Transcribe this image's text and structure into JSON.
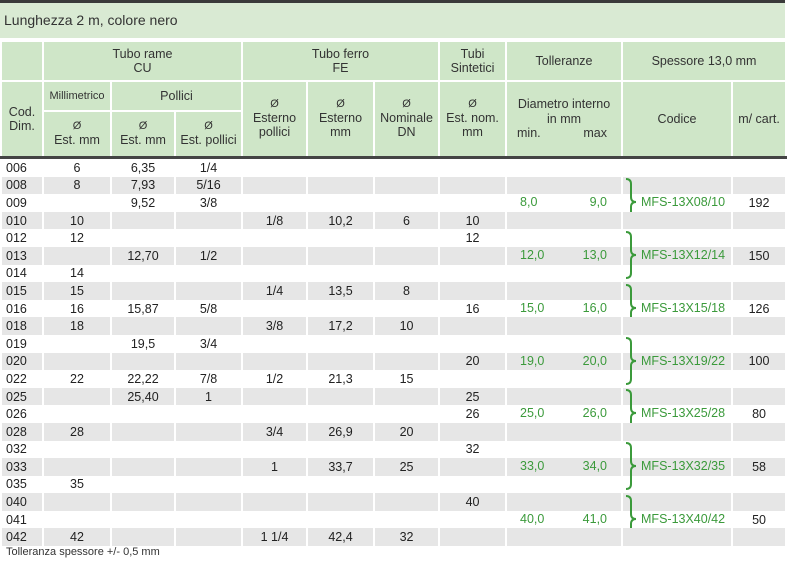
{
  "title": "Lunghezza 2 m, colore nero",
  "header": {
    "cod_dim": "Cod. Dim.",
    "tubo_rame": "Tubo rame",
    "tubo_rame_sub": "CU",
    "millimetrico": "Millimetrico",
    "pollici": "Pollici",
    "est_mm": "Est. mm",
    "est_pollici": "Est. pollici",
    "tubo_ferro": "Tubo ferro",
    "tubo_ferro_sub": "FE",
    "esterno_pollici": "Esterno pollici",
    "esterno_mm": "Esterno mm",
    "nominale_dn": "Nominale DN",
    "tubi_sintetici": "Tubi Sintetici",
    "est_nom_mm": "Est. nom. mm",
    "tolleranze": "Tolleranze",
    "diametro_interno": "Diametro interno in mm",
    "min": "min.",
    "max": "max",
    "spessore": "Spessore 13,0 mm",
    "codice": "Codice",
    "m_cart": "m/ cart.",
    "diameter_symbol": "Ø"
  },
  "rows": [
    {
      "cod": "006",
      "cu_mm": "6",
      "cu_mm2": "6,35",
      "cu_in": "1/4",
      "fe_in": "",
      "fe_mm": "",
      "fe_dn": "",
      "sint": "",
      "tol_min": "",
      "tol_max": "",
      "code": "",
      "mcart": ""
    },
    {
      "cod": "008",
      "cu_mm": "8",
      "cu_mm2": "7,93",
      "cu_in": "5/16",
      "fe_in": "",
      "fe_mm": "",
      "fe_dn": "",
      "sint": "",
      "tol_min": "",
      "tol_max": "",
      "code": "",
      "mcart": ""
    },
    {
      "cod": "009",
      "cu_mm": "",
      "cu_mm2": "9,52",
      "cu_in": "3/8",
      "fe_in": "",
      "fe_mm": "",
      "fe_dn": "",
      "sint": "",
      "tol_min": "8,0",
      "tol_max": "9,0",
      "code": "MFS-13X08/10",
      "mcart": "192"
    },
    {
      "cod": "010",
      "cu_mm": "10",
      "cu_mm2": "",
      "cu_in": "",
      "fe_in": "1/8",
      "fe_mm": "10,2",
      "fe_dn": "6",
      "sint": "10",
      "tol_min": "",
      "tol_max": "",
      "code": "",
      "mcart": ""
    },
    {
      "cod": "012",
      "cu_mm": "12",
      "cu_mm2": "",
      "cu_in": "",
      "fe_in": "",
      "fe_mm": "",
      "fe_dn": "",
      "sint": "12",
      "tol_min": "",
      "tol_max": "",
      "code": "",
      "mcart": ""
    },
    {
      "cod": "013",
      "cu_mm": "",
      "cu_mm2": "12,70",
      "cu_in": "1/2",
      "fe_in": "",
      "fe_mm": "",
      "fe_dn": "",
      "sint": "",
      "tol_min": "12,0",
      "tol_max": "13,0",
      "code": "MFS-13X12/14",
      "mcart": "150"
    },
    {
      "cod": "014",
      "cu_mm": "14",
      "cu_mm2": "",
      "cu_in": "",
      "fe_in": "",
      "fe_mm": "",
      "fe_dn": "",
      "sint": "",
      "tol_min": "",
      "tol_max": "",
      "code": "",
      "mcart": ""
    },
    {
      "cod": "015",
      "cu_mm": "15",
      "cu_mm2": "",
      "cu_in": "",
      "fe_in": "1/4",
      "fe_mm": "13,5",
      "fe_dn": "8",
      "sint": "",
      "tol_min": "",
      "tol_max": "",
      "code": "",
      "mcart": ""
    },
    {
      "cod": "016",
      "cu_mm": "16",
      "cu_mm2": "15,87",
      "cu_in": "5/8",
      "fe_in": "",
      "fe_mm": "",
      "fe_dn": "",
      "sint": "16",
      "tol_min": "15,0",
      "tol_max": "16,0",
      "code": "MFS-13X15/18",
      "mcart": "126"
    },
    {
      "cod": "018",
      "cu_mm": "18",
      "cu_mm2": "",
      "cu_in": "",
      "fe_in": "3/8",
      "fe_mm": "17,2",
      "fe_dn": "10",
      "sint": "",
      "tol_min": "",
      "tol_max": "",
      "code": "",
      "mcart": ""
    },
    {
      "cod": "019",
      "cu_mm": "",
      "cu_mm2": "19,5",
      "cu_in": "3/4",
      "fe_in": "",
      "fe_mm": "",
      "fe_dn": "",
      "sint": "",
      "tol_min": "",
      "tol_max": "",
      "code": "",
      "mcart": ""
    },
    {
      "cod": "020",
      "cu_mm": "",
      "cu_mm2": "",
      "cu_in": "",
      "fe_in": "",
      "fe_mm": "",
      "fe_dn": "",
      "sint": "20",
      "tol_min": "19,0",
      "tol_max": "20,0",
      "code": "MFS-13X19/22",
      "mcart": "100"
    },
    {
      "cod": "022",
      "cu_mm": "22",
      "cu_mm2": "22,22",
      "cu_in": "7/8",
      "fe_in": "1/2",
      "fe_mm": "21,3",
      "fe_dn": "15",
      "sint": "",
      "tol_min": "",
      "tol_max": "",
      "code": "",
      "mcart": ""
    },
    {
      "cod": "025",
      "cu_mm": "",
      "cu_mm2": "25,40",
      "cu_in": "1",
      "fe_in": "",
      "fe_mm": "",
      "fe_dn": "",
      "sint": "25",
      "tol_min": "",
      "tol_max": "",
      "code": "",
      "mcart": ""
    },
    {
      "cod": "026",
      "cu_mm": "",
      "cu_mm2": "",
      "cu_in": "",
      "fe_in": "",
      "fe_mm": "",
      "fe_dn": "",
      "sint": "26",
      "tol_min": "25,0",
      "tol_max": "26,0",
      "code": "MFS-13X25/28",
      "mcart": "80"
    },
    {
      "cod": "028",
      "cu_mm": "28",
      "cu_mm2": "",
      "cu_in": "",
      "fe_in": "3/4",
      "fe_mm": "26,9",
      "fe_dn": "20",
      "sint": "",
      "tol_min": "",
      "tol_max": "",
      "code": "",
      "mcart": ""
    },
    {
      "cod": "032",
      "cu_mm": "",
      "cu_mm2": "",
      "cu_in": "",
      "fe_in": "",
      "fe_mm": "",
      "fe_dn": "",
      "sint": "32",
      "tol_min": "",
      "tol_max": "",
      "code": "",
      "mcart": ""
    },
    {
      "cod": "033",
      "cu_mm": "",
      "cu_mm2": "",
      "cu_in": "",
      "fe_in": "1",
      "fe_mm": "33,7",
      "fe_dn": "25",
      "sint": "",
      "tol_min": "33,0",
      "tol_max": "34,0",
      "code": "MFS-13X32/35",
      "mcart": "58"
    },
    {
      "cod": "035",
      "cu_mm": "35",
      "cu_mm2": "",
      "cu_in": "",
      "fe_in": "",
      "fe_mm": "",
      "fe_dn": "",
      "sint": "",
      "tol_min": "",
      "tol_max": "",
      "code": "",
      "mcart": ""
    },
    {
      "cod": "040",
      "cu_mm": "",
      "cu_mm2": "",
      "cu_in": "",
      "fe_in": "",
      "fe_mm": "",
      "fe_dn": "",
      "sint": "40",
      "tol_min": "",
      "tol_max": "",
      "code": "",
      "mcart": ""
    },
    {
      "cod": "041",
      "cu_mm": "",
      "cu_mm2": "",
      "cu_in": "",
      "fe_in": "",
      "fe_mm": "",
      "fe_dn": "",
      "sint": "",
      "tol_min": "40,0",
      "tol_max": "41,0",
      "code": "MFS-13X40/42",
      "mcart": "50"
    },
    {
      "cod": "042",
      "cu_mm": "42",
      "cu_mm2": "",
      "cu_in": "",
      "fe_in": "1 1/4",
      "fe_mm": "42,4",
      "fe_dn": "32",
      "sint": "",
      "tol_min": "",
      "tol_max": "",
      "code": "",
      "mcart": ""
    }
  ],
  "footnote": "Tolleranza spessore +/- 0,5 mm",
  "colors": {
    "header_bg": "#cfe6c8",
    "title_bg": "#d9ead3",
    "alt_row": "#e6e6e6",
    "accent_green": "#3b9a3b"
  }
}
